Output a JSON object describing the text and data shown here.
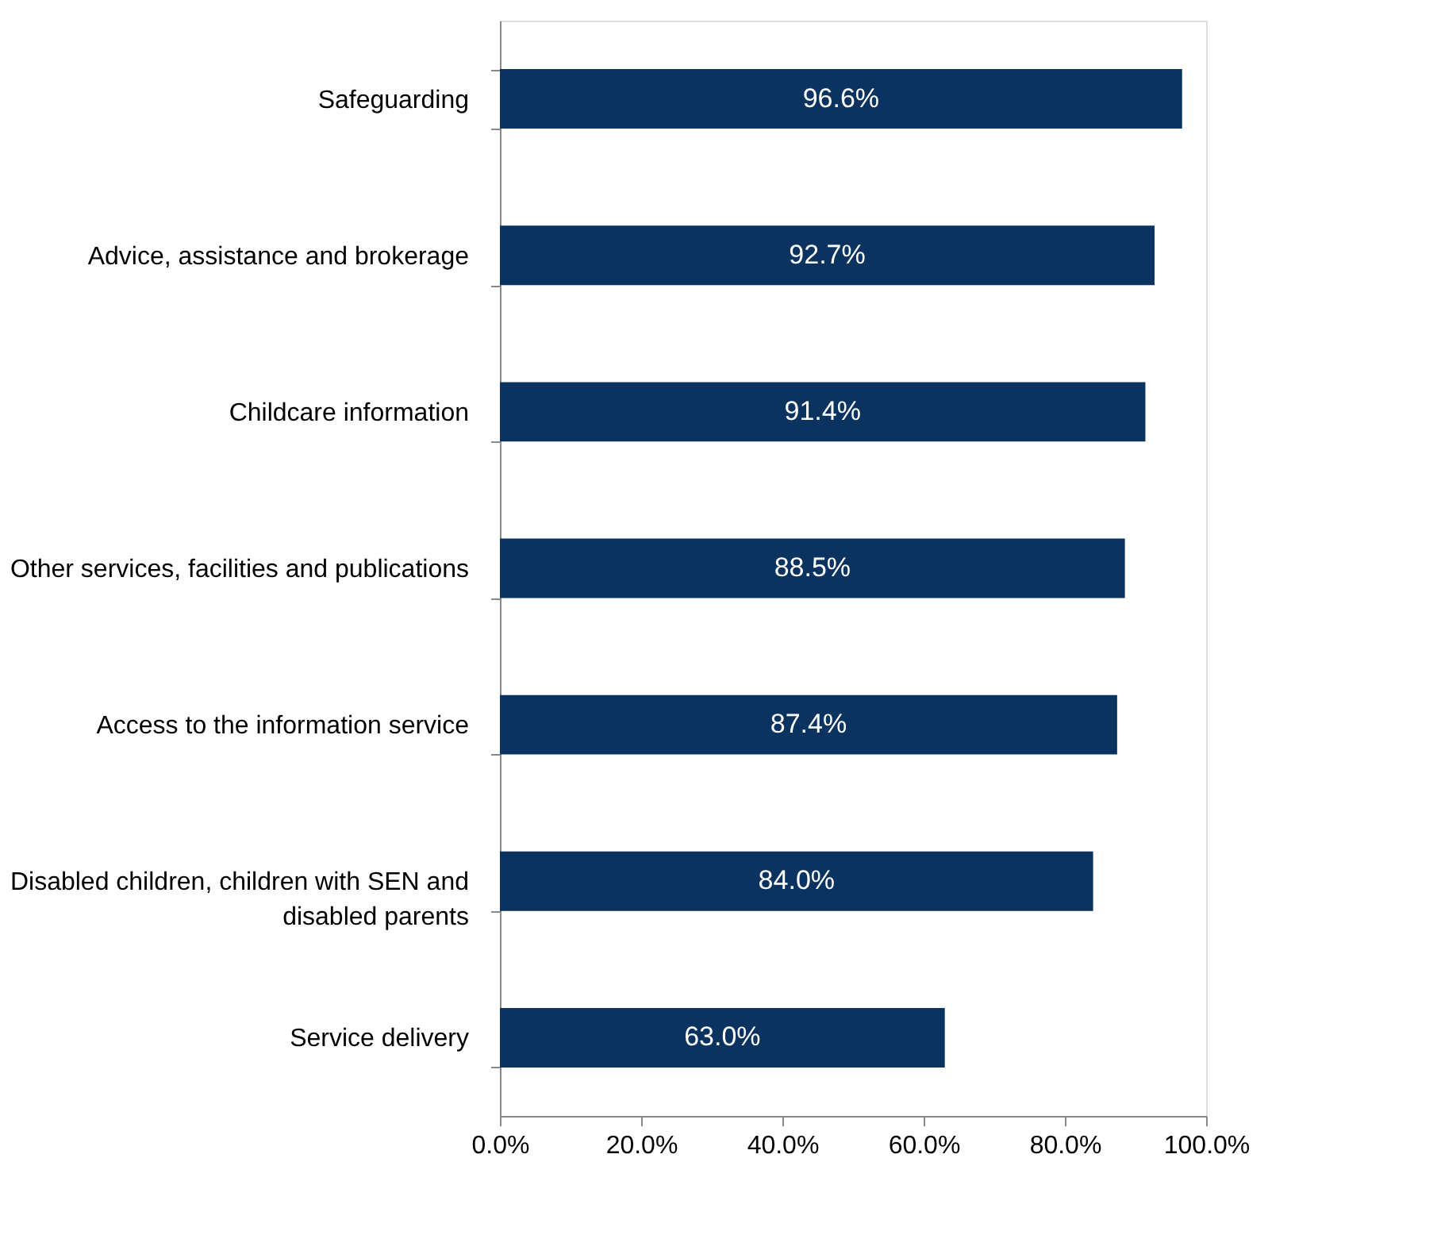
{
  "chart_data": {
    "type": "bar",
    "orientation": "horizontal",
    "categories": [
      "Safeguarding",
      "Advice, assistance and brokerage",
      "Childcare information",
      "Other services, facilities and publications",
      "Access to the information service",
      "Disabled children, children with SEN and disabled parents",
      "Service delivery"
    ],
    "values": [
      96.6,
      92.7,
      91.4,
      88.5,
      87.4,
      84.0,
      63.0
    ],
    "value_labels": [
      "96.6%",
      "92.7%",
      "91.4%",
      "88.5%",
      "87.4%",
      "84.0%",
      "63.0%"
    ],
    "color": "#0b3360",
    "xlim": [
      0,
      100
    ],
    "xticks": [
      {
        "value": 0,
        "label": "0.0%"
      },
      {
        "value": 20,
        "label": "20.0%"
      },
      {
        "value": 40,
        "label": "40.0%"
      },
      {
        "value": 60,
        "label": "60.0%"
      },
      {
        "value": 80,
        "label": "80.0%"
      },
      {
        "value": 100,
        "label": "100.0%"
      }
    ],
    "grid": false
  }
}
